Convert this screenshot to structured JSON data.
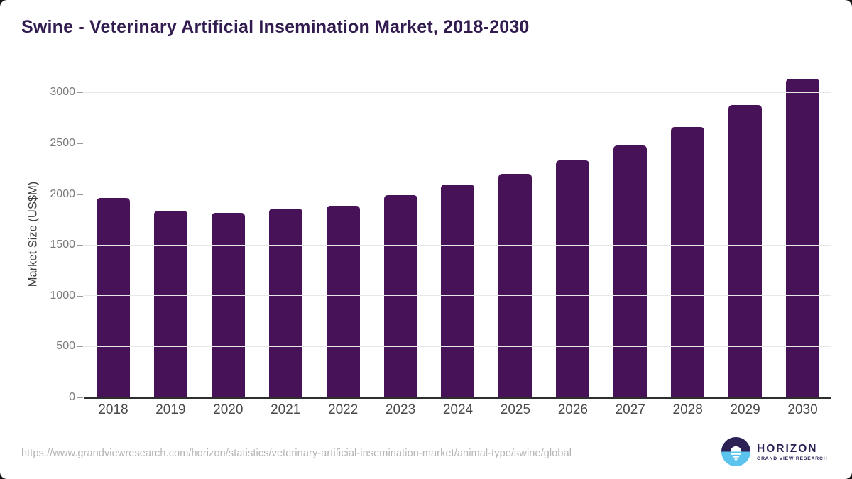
{
  "surface": {
    "background": "#141414",
    "card_background": "#ffffff"
  },
  "chart_data": {
    "type": "bar",
    "title": "Swine - Veterinary Artificial Insemination Market, 2018-2030",
    "categories": [
      "2018",
      "2019",
      "2020",
      "2021",
      "2022",
      "2023",
      "2024",
      "2025",
      "2026",
      "2027",
      "2028",
      "2029",
      "2030"
    ],
    "values": [
      1959,
      1834,
      1819,
      1854,
      1887,
      1989,
      2096,
      2198,
      2332,
      2481,
      2663,
      2877,
      3133
    ],
    "xlabel": "",
    "ylabel": "Market Size (US$M)",
    "ylim": [
      0,
      3212
    ],
    "yticks": [
      0,
      500,
      1000,
      1500,
      2000,
      2500,
      3000
    ],
    "grid": true,
    "legend": false,
    "colors": {
      "bar": "#481259",
      "title": "#321b4f",
      "gridline": "#e8e8e8",
      "axis_line": "#2e2e2e",
      "x_tick_label": "#4a4a4a",
      "y_tick_label": "#7a7a7a"
    }
  },
  "footer": {
    "source_url": "https://www.grandviewresearch.com/horizon/statistics/veterinary-artificial-insemination-market/animal-type/swine/global",
    "logo": {
      "icon": "horizon-sun-logo",
      "name": "HORIZON",
      "subtitle": "GRAND VIEW RESEARCH",
      "primary_color": "#2c2054",
      "accent_color": "#5cc3ef"
    }
  }
}
